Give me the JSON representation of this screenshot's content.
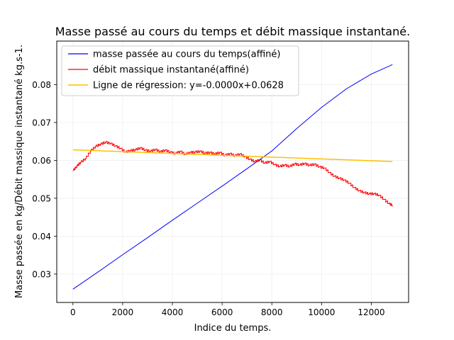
{
  "chart_data": {
    "type": "line",
    "title": "Masse passé au cours du temps et débit massique instantané.",
    "xlabel": "Indice du temps.",
    "ylabel": "Masse passée en kg/Débit massique instantané kg.s-1.",
    "xlim": [
      -650,
      13500
    ],
    "ylim": [
      0.0225,
      0.0915
    ],
    "xticks": [
      0,
      2000,
      4000,
      6000,
      8000,
      10000,
      12000
    ],
    "xtick_labels": [
      "0",
      "2000",
      "4000",
      "6000",
      "8000",
      "10000",
      "12000"
    ],
    "yticks": [
      0.03,
      0.04,
      0.05,
      0.06,
      0.07,
      0.08
    ],
    "ytick_labels": [
      "0.03",
      "0.04",
      "0.05",
      "0.06",
      "0.07",
      "0.08"
    ],
    "grid": true,
    "legend_position": "top-left",
    "series": [
      {
        "name": "masse passée au cours du temps(affiné)",
        "color": "#0000ff",
        "style": "line",
        "x": [
          0,
          1000,
          2000,
          3000,
          4000,
          5000,
          6000,
          7000,
          8000,
          9000,
          10000,
          11000,
          12000,
          12850
        ],
        "y": [
          0.026,
          0.0305,
          0.0351,
          0.0396,
          0.0442,
          0.0487,
          0.0532,
          0.0578,
          0.0625,
          0.0684,
          0.074,
          0.0789,
          0.0828,
          0.0853
        ]
      },
      {
        "name": "débit massique instantané(affiné)",
        "color": "#ff0000",
        "style": "step",
        "x": [
          0,
          150,
          300,
          500,
          700,
          900,
          1100,
          1300,
          1500,
          1700,
          1900,
          2100,
          2300,
          2500,
          2700,
          2900,
          3100,
          3300,
          3500,
          3700,
          3900,
          4100,
          4300,
          4500,
          4700,
          4900,
          5100,
          5300,
          5500,
          5700,
          5900,
          6100,
          6300,
          6500,
          6700,
          6900,
          7100,
          7300,
          7500,
          7700,
          7900,
          8100,
          8300,
          8500,
          8700,
          8900,
          9100,
          9300,
          9500,
          9700,
          9900,
          10100,
          10300,
          10500,
          10700,
          10900,
          11100,
          11300,
          11500,
          11700,
          11900,
          12100,
          12300,
          12500,
          12700,
          12850
        ],
        "y": [
          0.0573,
          0.0585,
          0.0595,
          0.0605,
          0.0625,
          0.0637,
          0.0643,
          0.0648,
          0.0645,
          0.0638,
          0.0632,
          0.0622,
          0.0626,
          0.0628,
          0.0633,
          0.0627,
          0.0624,
          0.0629,
          0.0623,
          0.0627,
          0.0622,
          0.0618,
          0.0624,
          0.0616,
          0.0621,
          0.0622,
          0.0624,
          0.0619,
          0.0621,
          0.0617,
          0.0621,
          0.0613,
          0.0618,
          0.0612,
          0.0617,
          0.061,
          0.0603,
          0.0597,
          0.0601,
          0.0593,
          0.0597,
          0.0589,
          0.0584,
          0.0588,
          0.0584,
          0.0591,
          0.0588,
          0.0592,
          0.0587,
          0.059,
          0.0583,
          0.058,
          0.0568,
          0.0558,
          0.0553,
          0.0548,
          0.054,
          0.0528,
          0.052,
          0.0515,
          0.0512,
          0.0512,
          0.0508,
          0.0497,
          0.0486,
          0.0481
        ]
      },
      {
        "name": "Ligne de régression: y=-0.0000x+0.0628",
        "color": "#ffc000",
        "style": "line",
        "x": [
          0,
          12850
        ],
        "y": [
          0.0628,
          0.0597
        ]
      }
    ]
  }
}
